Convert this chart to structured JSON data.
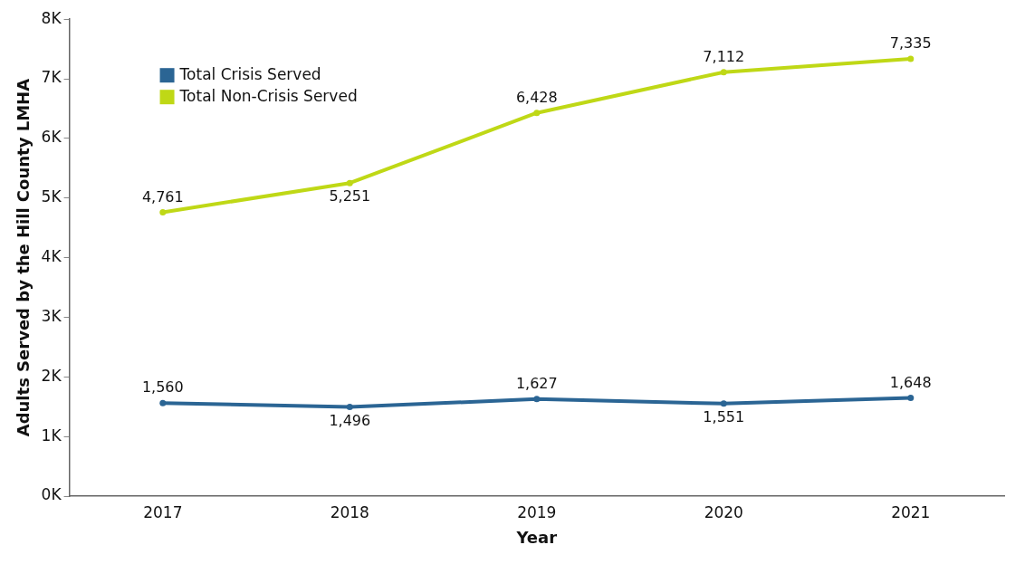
{
  "chart_data": {
    "type": "line",
    "xlabel": "Year",
    "ylabel": "Adults Served by the Hill County LMHA",
    "categories": [
      "2017",
      "2018",
      "2019",
      "2020",
      "2021"
    ],
    "series": [
      {
        "name": "Total Crisis Served",
        "color": "#2b6594",
        "values": [
          1560,
          1496,
          1627,
          1551,
          1648
        ],
        "value_labels": [
          "1,560",
          "1,496",
          "1,627",
          "1,551",
          "1,648"
        ]
      },
      {
        "name": "Total Non-Crisis Served",
        "color": "#bfd816",
        "values": [
          4761,
          5251,
          6428,
          7112,
          7335
        ],
        "value_labels": [
          "4,761",
          "5,251",
          "6,428",
          "7,112",
          "7,335"
        ]
      }
    ],
    "ylim": [
      0,
      8000
    ],
    "yticks": [
      {
        "value": 0,
        "label": "0K"
      },
      {
        "value": 1000,
        "label": "1K"
      },
      {
        "value": 2000,
        "label": "2K"
      },
      {
        "value": 3000,
        "label": "3K"
      },
      {
        "value": 4000,
        "label": "4K"
      },
      {
        "value": 5000,
        "label": "5K"
      },
      {
        "value": 6000,
        "label": "6K"
      },
      {
        "value": 7000,
        "label": "7K"
      },
      {
        "value": 8000,
        "label": "8K"
      }
    ],
    "grid": false,
    "legend": "top left",
    "marker": "circle",
    "line_style": "solid"
  }
}
